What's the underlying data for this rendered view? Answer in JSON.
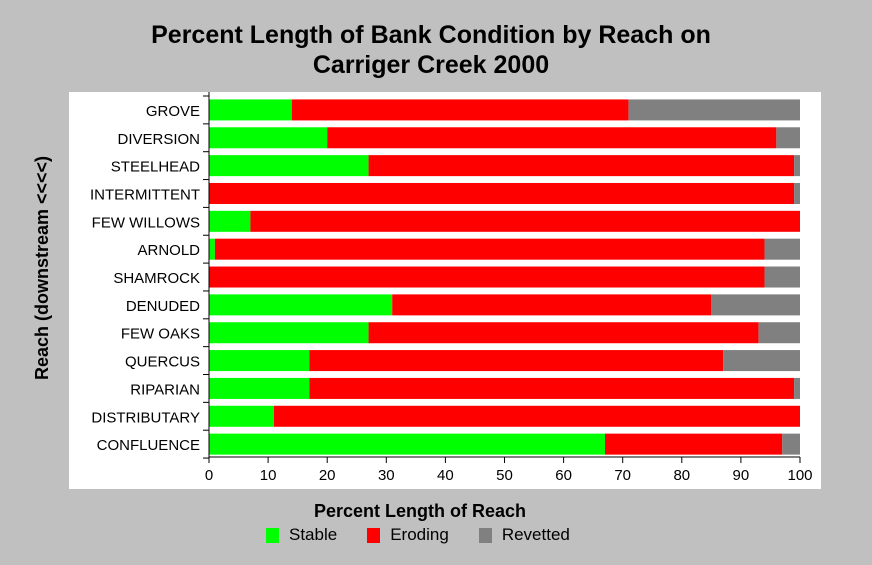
{
  "chart_data": {
    "type": "bar",
    "orientation": "horizontal",
    "stacked": true,
    "title_line1": "Percent Length of Bank Condition by Reach on",
    "title_line2": "Carriger Creek 2000",
    "xlabel": "Percent Length of Reach",
    "ylabel": "Reach (downstream <<<<)",
    "xlim": [
      0,
      100
    ],
    "xticks": [
      "0",
      "10",
      "20",
      "30",
      "40",
      "50",
      "60",
      "70",
      "80",
      "90",
      "100"
    ],
    "categories": [
      "GROVE",
      "DIVERSION",
      "STEELHEAD",
      "INTERMITTENT",
      "FEW WILLOWS",
      "ARNOLD",
      "SHAMROCK",
      "DENUDED",
      "FEW OAKS",
      "QUERCUS",
      "RIPARIAN",
      "DISTRIBUTARY",
      "CONFLUENCE"
    ],
    "series": [
      {
        "name": "Stable",
        "color": "#00ff00",
        "values": [
          14,
          20,
          27,
          0,
          7,
          1,
          0,
          31,
          27,
          17,
          17,
          11,
          67
        ]
      },
      {
        "name": "Eroding",
        "color": "#ff0000",
        "values": [
          57,
          76,
          72,
          99,
          93,
          93,
          94,
          54,
          66,
          70,
          82,
          89,
          30
        ]
      },
      {
        "name": "Revetted",
        "color": "#808080",
        "values": [
          29,
          4,
          1,
          1,
          0,
          6,
          6,
          15,
          7,
          13,
          1,
          0,
          3
        ]
      }
    ],
    "legend_position": "bottom",
    "grid": false
  }
}
